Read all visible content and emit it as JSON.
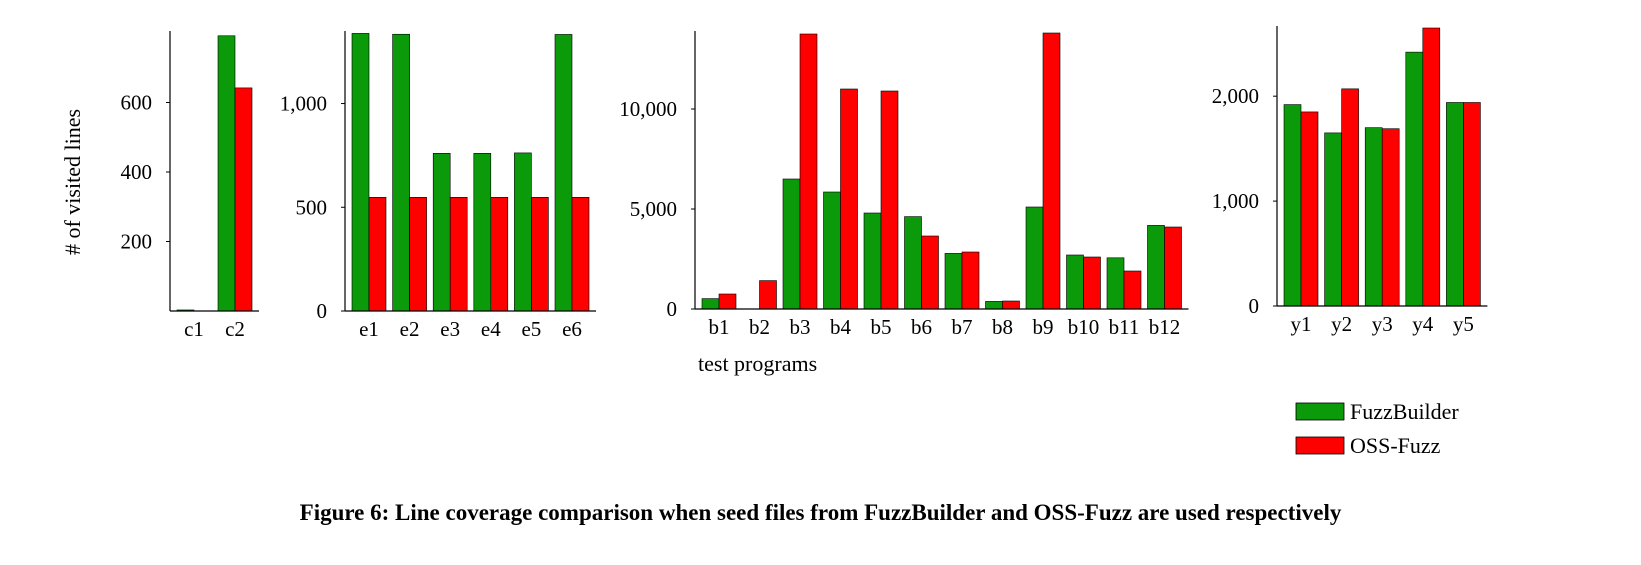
{
  "figure": {
    "caption": "Figure 6: Line coverage comparison when seed files from FuzzBuilder and OSS-Fuzz are used respectively"
  },
  "colors": {
    "FuzzBuilder": "#0a9a0a",
    "OSS-Fuzz": "#ff0000"
  },
  "chart_data": [
    {
      "type": "bar",
      "ylabel": "# of visited lines",
      "xlabel": "",
      "categories": [
        "c1",
        "c2"
      ],
      "series": [
        {
          "name": "FuzzBuilder",
          "values": [
            3,
            792
          ]
        },
        {
          "name": "OSS-Fuzz",
          "values": [
            0,
            642
          ]
        }
      ],
      "ylim": [
        0,
        800
      ],
      "yticks": [
        200,
        400,
        600
      ],
      "ytick_labels": [
        "200",
        "400",
        "600"
      ],
      "grid": false
    },
    {
      "type": "bar",
      "ylabel": "",
      "xlabel": "",
      "categories": [
        "e1",
        "e2",
        "e3",
        "e4",
        "e5",
        "e6"
      ],
      "series": [
        {
          "name": "FuzzBuilder",
          "values": [
            1338,
            1334,
            760,
            760,
            762,
            1333
          ]
        },
        {
          "name": "OSS-Fuzz",
          "values": [
            548,
            548,
            548,
            548,
            548,
            548
          ]
        }
      ],
      "ylim": [
        0,
        1340
      ],
      "yticks": [
        0,
        500,
        1000
      ],
      "ytick_labels": [
        "0",
        "500",
        "1,000"
      ],
      "grid": false
    },
    {
      "type": "bar",
      "ylabel": "",
      "xlabel": "test programs",
      "categories": [
        "b1",
        "b2",
        "b3",
        "b4",
        "b5",
        "b6",
        "b7",
        "b8",
        "b9",
        "b10",
        "b11",
        "b12"
      ],
      "series": [
        {
          "name": "FuzzBuilder",
          "values": [
            520,
            0,
            6500,
            5850,
            4800,
            4620,
            2780,
            380,
            5100,
            2700,
            2560,
            4180
          ]
        },
        {
          "name": "OSS-Fuzz",
          "values": [
            750,
            1420,
            13750,
            11000,
            10900,
            3650,
            2850,
            400,
            13800,
            2600,
            1900,
            4100
          ]
        }
      ],
      "ylim": [
        0,
        13800
      ],
      "yticks": [
        0,
        5000,
        10000
      ],
      "ytick_labels": [
        "0",
        "5,000",
        "10,000"
      ],
      "grid": false
    },
    {
      "type": "bar",
      "ylabel": "",
      "xlabel": "",
      "categories": [
        "y1",
        "y2",
        "y3",
        "y4",
        "y5"
      ],
      "series": [
        {
          "name": "FuzzBuilder",
          "values": [
            1920,
            1650,
            1700,
            2420,
            1940
          ]
        },
        {
          "name": "OSS-Fuzz",
          "values": [
            1850,
            2070,
            1690,
            2650,
            1940
          ]
        }
      ],
      "ylim": [
        0,
        2650
      ],
      "yticks": [
        0,
        1000,
        2000
      ],
      "ytick_labels": [
        "0",
        "1,000",
        "2,000"
      ],
      "grid": false
    }
  ],
  "legend": {
    "placement": "bottom-right",
    "entries": [
      {
        "label": "FuzzBuilder",
        "color": "#0a9a0a"
      },
      {
        "label": "OSS-Fuzz",
        "color": "#ff0000"
      }
    ]
  }
}
